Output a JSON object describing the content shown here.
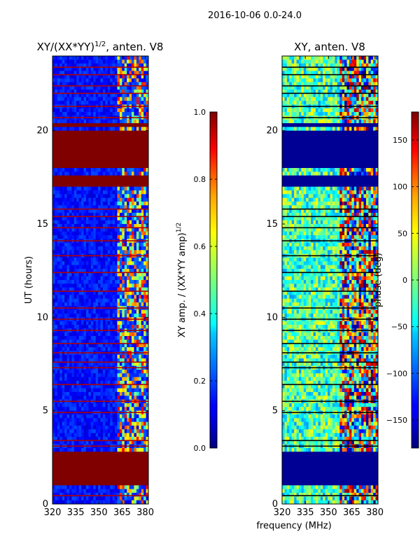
{
  "figure": {
    "suptitle": "2016-10-06 0.0-24.0",
    "shared_xlabel": "frequency (MHz)"
  },
  "chart_data": [
    {
      "type": "heatmap",
      "id": "amp",
      "title_main": "XY/(XX*YY)",
      "title_sup": "1/2",
      "title_rest": ", anten. V8",
      "xlabel": "",
      "ylabel": "UT (hours)",
      "xlim": [
        320,
        382
      ],
      "ylim": [
        0,
        24
      ],
      "xticks": [
        320,
        335,
        350,
        365,
        380
      ],
      "yticks": [
        0,
        5,
        10,
        15,
        20
      ],
      "colorbar": {
        "label_main": "XY amp. / (XX*YY amp)",
        "label_sup": "1/2",
        "range": [
          0,
          1
        ],
        "ticks": [
          "0.0",
          "0.2",
          "0.4",
          "0.6",
          "0.8",
          "1.0"
        ],
        "tick_values": [
          0,
          0.2,
          0.4,
          0.6,
          0.8,
          1.0
        ]
      },
      "saturated_bands_hours": [
        [
          1.1,
          2.75
        ],
        [
          17.0,
          17.6
        ],
        [
          18.1,
          19.9
        ],
        [
          20.2,
          20.4
        ]
      ],
      "flag_lines_hours": [
        0.45,
        3.1,
        3.4,
        4.9,
        5.5,
        6.4,
        7.3,
        7.6,
        8.1,
        8.6,
        9.3,
        9.9,
        10.5,
        11.4,
        12.4,
        13.3,
        14.1,
        14.8,
        15.4,
        15.8,
        20.7,
        21.3,
        22.0,
        22.4,
        23.0,
        23.4
      ],
      "hot_region_mhz": [
        362,
        382
      ]
    },
    {
      "type": "heatmap",
      "id": "phase",
      "title_main": "XY, anten. V8",
      "xlabel": "",
      "ylabel": "",
      "xlim": [
        320,
        382
      ],
      "ylim": [
        0,
        24
      ],
      "xticks": [
        320,
        335,
        350,
        365,
        380
      ],
      "yticks": [
        0,
        5,
        10,
        15,
        20
      ],
      "colorbar": {
        "label_main": "phase (deg)",
        "range": [
          -180,
          180
        ],
        "ticks": [
          "−150",
          "−100",
          "−50",
          "0",
          "50",
          "100",
          "150"
        ],
        "tick_values": [
          -150,
          -100,
          -50,
          0,
          50,
          100,
          150
        ]
      },
      "flagged_bands_hours": [
        [
          1.1,
          2.75
        ],
        [
          17.0,
          17.6
        ],
        [
          18.1,
          19.9
        ],
        [
          20.2,
          20.4
        ]
      ],
      "flag_lines_hours": [
        0.45,
        3.1,
        3.4,
        4.9,
        5.5,
        6.4,
        7.3,
        7.6,
        8.1,
        8.6,
        9.3,
        9.9,
        10.5,
        11.4,
        12.4,
        13.3,
        14.1,
        14.8,
        15.4,
        15.8,
        20.7,
        21.3,
        22.0,
        22.4,
        23.0,
        23.4
      ]
    }
  ]
}
